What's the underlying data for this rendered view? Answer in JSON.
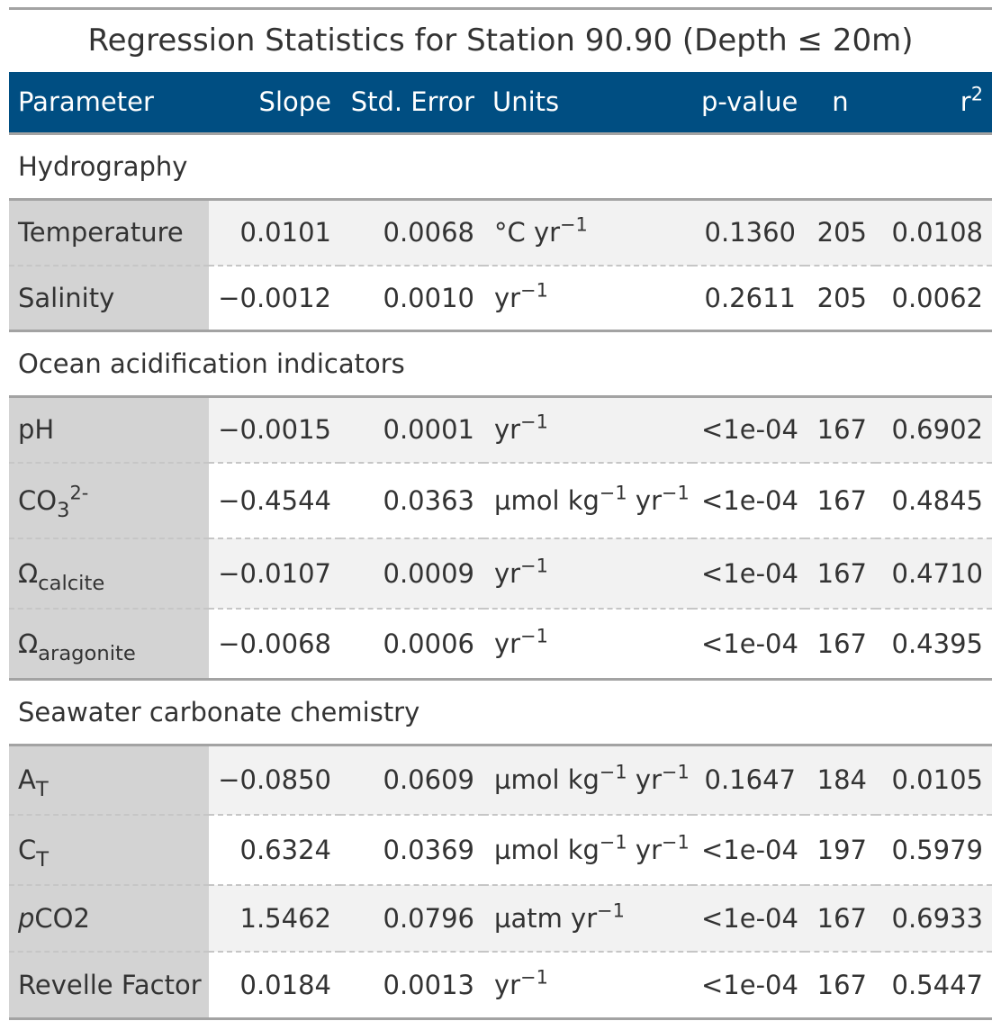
{
  "title": "Regression Statistics for Station 90.90 (Depth ≤ 20m)",
  "columns": {
    "parameter": "Parameter",
    "slope": "Slope",
    "std_error": "Std. Error",
    "units": "Units",
    "p_value": "p-value",
    "n": "n",
    "r2_base": "r",
    "r2_exp": "2"
  },
  "groups": [
    {
      "label": "Hydrography",
      "rows": [
        {
          "param": "Temperature",
          "slope": "0.0101",
          "se": "0.0068",
          "unit_a": "°C yr",
          "unit_a_exp": "−1",
          "p": "0.1360",
          "n": "205",
          "r2": "0.0108"
        },
        {
          "param": "Salinity",
          "slope": "−0.0012",
          "se": "0.0010",
          "unit_a": "yr",
          "unit_a_exp": "−1",
          "p": "0.2611",
          "n": "205",
          "r2": "0.0062"
        }
      ]
    },
    {
      "label": "Ocean acidification indicators",
      "rows": [
        {
          "param": "pH",
          "slope": "−0.0015",
          "se": "0.0001",
          "unit_a": "yr",
          "unit_a_exp": "−1",
          "p": "<1e-04",
          "n": "167",
          "r2": "0.6902"
        },
        {
          "param_base": "CO",
          "param_sub": "3",
          "param_sup": "2-",
          "slope": "−0.4544",
          "se": "0.0363",
          "unit_a": "µmol kg",
          "unit_a_exp": "−1",
          "unit_b": "yr",
          "unit_b_exp": "−1",
          "p": "<1e-04",
          "n": "167",
          "r2": "0.4845"
        },
        {
          "param_base": "Ω",
          "param_sub": "calcite",
          "slope": "−0.0107",
          "se": "0.0009",
          "unit_a": "yr",
          "unit_a_exp": "−1",
          "p": "<1e-04",
          "n": "167",
          "r2": "0.4710"
        },
        {
          "param_base": "Ω",
          "param_sub": "aragonite",
          "slope": "−0.0068",
          "se": "0.0006",
          "unit_a": "yr",
          "unit_a_exp": "−1",
          "p": "<1e-04",
          "n": "167",
          "r2": "0.4395"
        }
      ]
    },
    {
      "label": "Seawater carbonate chemistry",
      "rows": [
        {
          "param_base": "A",
          "param_sub": "T",
          "slope": "−0.0850",
          "se": "0.0609",
          "unit_a": "µmol kg",
          "unit_a_exp": "−1",
          "unit_b": "yr",
          "unit_b_exp": "−1",
          "p": "0.1647",
          "n": "184",
          "r2": "0.0105"
        },
        {
          "param_base": "C",
          "param_sub": "T",
          "slope": "0.6324",
          "se": "0.0369",
          "unit_a": "µmol kg",
          "unit_a_exp": "−1",
          "unit_b": "yr",
          "unit_b_exp": "−1",
          "p": "<1e-04",
          "n": "197",
          "r2": "0.5979"
        },
        {
          "param_it": "p",
          "param_rest": "CO2",
          "slope": "1.5462",
          "se": "0.0796",
          "unit_a": "µatm yr",
          "unit_a_exp": "−1",
          "p": "<1e-04",
          "n": "167",
          "r2": "0.6933"
        },
        {
          "param": "Revelle Factor",
          "slope": "0.0184",
          "se": "0.0013",
          "unit_a": "yr",
          "unit_a_exp": "−1",
          "p": "<1e-04",
          "n": "167",
          "r2": "0.5447"
        }
      ]
    }
  ]
}
